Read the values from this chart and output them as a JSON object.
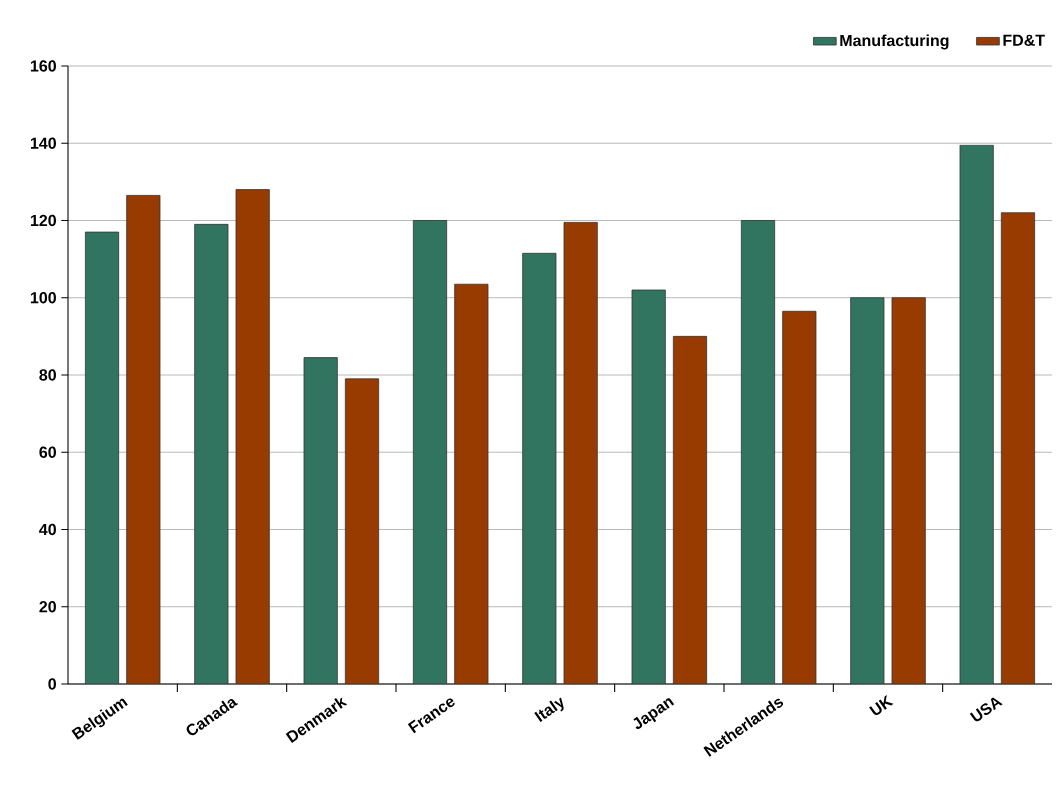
{
  "chart_data": {
    "type": "bar",
    "categories": [
      "Belgium",
      "Canada",
      "Denmark",
      "France",
      "Italy",
      "Japan",
      "Netherlands",
      "UK",
      "USA"
    ],
    "series": [
      {
        "name": "Manufacturing",
        "color": "#317560",
        "values": [
          117,
          119,
          84.5,
          120,
          111.5,
          102,
          120,
          100,
          139.5
        ]
      },
      {
        "name": "FD&T",
        "color": "#973b00",
        "values": [
          126.5,
          128,
          79,
          103.5,
          119.5,
          90,
          96.5,
          100,
          122
        ]
      }
    ],
    "ylim": [
      0,
      160
    ],
    "yticks": [
      0,
      20,
      40,
      60,
      80,
      100,
      120,
      140,
      160
    ],
    "grid": "y",
    "legend": "top right"
  }
}
